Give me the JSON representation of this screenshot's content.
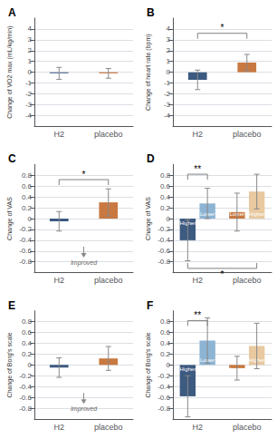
{
  "chart_data": [
    {
      "type": "bar",
      "title": "A",
      "ylabel": "Change of VO2 max (mL/kg/min)",
      "categories": [
        "H2",
        "placebo"
      ],
      "values": [
        -0.1,
        -0.1
      ],
      "colors": [
        "#3D5A80",
        "#C87941"
      ],
      "errors": [
        0.55,
        0.45
      ],
      "ylim": [
        -5,
        5
      ],
      "yticks": [
        -4,
        -3,
        -2,
        -1,
        0,
        1,
        2,
        3,
        4
      ],
      "grid": true,
      "brackets": [],
      "annotations": []
    },
    {
      "type": "bar",
      "title": "B",
      "ylabel": "Change of heart rate (bpm)",
      "categories": [
        "H2",
        "placebo"
      ],
      "values": [
        -0.7,
        0.9
      ],
      "colors": [
        "#3D5A80",
        "#C87941"
      ],
      "errors": [
        0.9,
        0.75
      ],
      "ylim": [
        -5,
        5
      ],
      "yticks": [
        -4,
        -3,
        -2,
        -1,
        0,
        1,
        2,
        3,
        4
      ],
      "grid": true,
      "brackets": [
        {
          "y": 3.6,
          "text": "*",
          "from": {
            "category": "H2"
          },
          "to": {
            "category": "placebo"
          }
        }
      ],
      "annotations": []
    },
    {
      "type": "bar",
      "title": "C",
      "ylabel": "Change of VAS",
      "categories": [
        "H2",
        "placebo"
      ],
      "values": [
        -0.05,
        0.3
      ],
      "colors": [
        "#3D5A80",
        "#C87941"
      ],
      "errors": [
        0.18,
        0.25
      ],
      "ylim": [
        -1,
        1
      ],
      "yticks": [
        -0.8,
        -0.6,
        -0.4,
        -0.2,
        0,
        0.2,
        0.4,
        0.6,
        0.8
      ],
      "grid": true,
      "brackets": [
        {
          "y": 0.72,
          "text": "*",
          "from": {
            "category": "H2"
          },
          "to": {
            "category": "placebo"
          }
        }
      ],
      "annotations": [
        {
          "text": "Improved",
          "y": -0.75,
          "arrow": [
            -0.52,
            -0.72
          ]
        }
      ]
    },
    {
      "type": "bar",
      "title": "D",
      "ylabel": "Change of VAS",
      "categories": [
        "H2",
        "placebo"
      ],
      "series": [
        {
          "values": [
            -0.4,
            0.12
          ],
          "colors": [
            "#3D5A80",
            "#C87941"
          ],
          "errors": [
            0.38,
            0.35
          ],
          "labels": [
            "Higher",
            "Lower"
          ]
        },
        {
          "values": [
            0.28,
            0.5
          ],
          "colors": [
            "#8EB4D3",
            "#E8C9A0"
          ],
          "errors": [
            0.28,
            0.32
          ],
          "labels": [
            "Lower",
            "Higher"
          ]
        }
      ],
      "ylim": [
        -1,
        1
      ],
      "yticks": [
        -0.8,
        -0.6,
        -0.4,
        -0.2,
        0,
        0.2,
        0.4,
        0.6,
        0.8
      ],
      "grid": true,
      "brackets": [
        {
          "y": 0.82,
          "text": "**",
          "from": {
            "category": "H2",
            "series": 0
          },
          "to": {
            "category": "H2",
            "series": 1
          }
        },
        {
          "y": -0.92,
          "text": "*",
          "from": {
            "category": "H2",
            "series": 0
          },
          "to": {
            "category": "placebo",
            "series": 1
          }
        }
      ],
      "annotations": []
    },
    {
      "type": "bar",
      "title": "E",
      "ylabel": "Change of Borg's scale",
      "categories": [
        "H2",
        "placebo"
      ],
      "values": [
        -0.05,
        0.12
      ],
      "colors": [
        "#3D5A80",
        "#C87941"
      ],
      "errors": [
        0.18,
        0.22
      ],
      "ylim": [
        -1,
        1
      ],
      "yticks": [
        -0.8,
        -0.6,
        -0.4,
        -0.2,
        0,
        0.2,
        0.4,
        0.6,
        0.8
      ],
      "grid": true,
      "brackets": [],
      "annotations": [
        {
          "text": "Improved",
          "y": -0.75,
          "arrow": [
            -0.52,
            -0.72
          ]
        }
      ]
    },
    {
      "type": "bar",
      "title": "F",
      "ylabel": "Change of Borg's scale",
      "categories": [
        "H2",
        "placebo"
      ],
      "series": [
        {
          "values": [
            -0.58,
            -0.06
          ],
          "colors": [
            "#3D5A80",
            "#C87941"
          ],
          "errors": [
            0.38,
            0.22
          ],
          "labels": [
            "Higher",
            "Lower"
          ]
        },
        {
          "values": [
            0.45,
            0.35
          ],
          "colors": [
            "#8EB4D3",
            "#E8C9A0"
          ],
          "errors": [
            0.42,
            0.42
          ],
          "labels": [
            "Lower",
            "Higher"
          ]
        }
      ],
      "ylim": [
        -1,
        1
      ],
      "yticks": [
        -0.8,
        -0.6,
        -0.4,
        -0.2,
        0,
        0.2,
        0.4,
        0.6,
        0.8
      ],
      "grid": true,
      "brackets": [
        {
          "y": 0.82,
          "text": "**",
          "from": {
            "category": "H2",
            "series": 0
          },
          "to": {
            "category": "H2",
            "series": 1
          }
        }
      ],
      "annotations": []
    }
  ]
}
